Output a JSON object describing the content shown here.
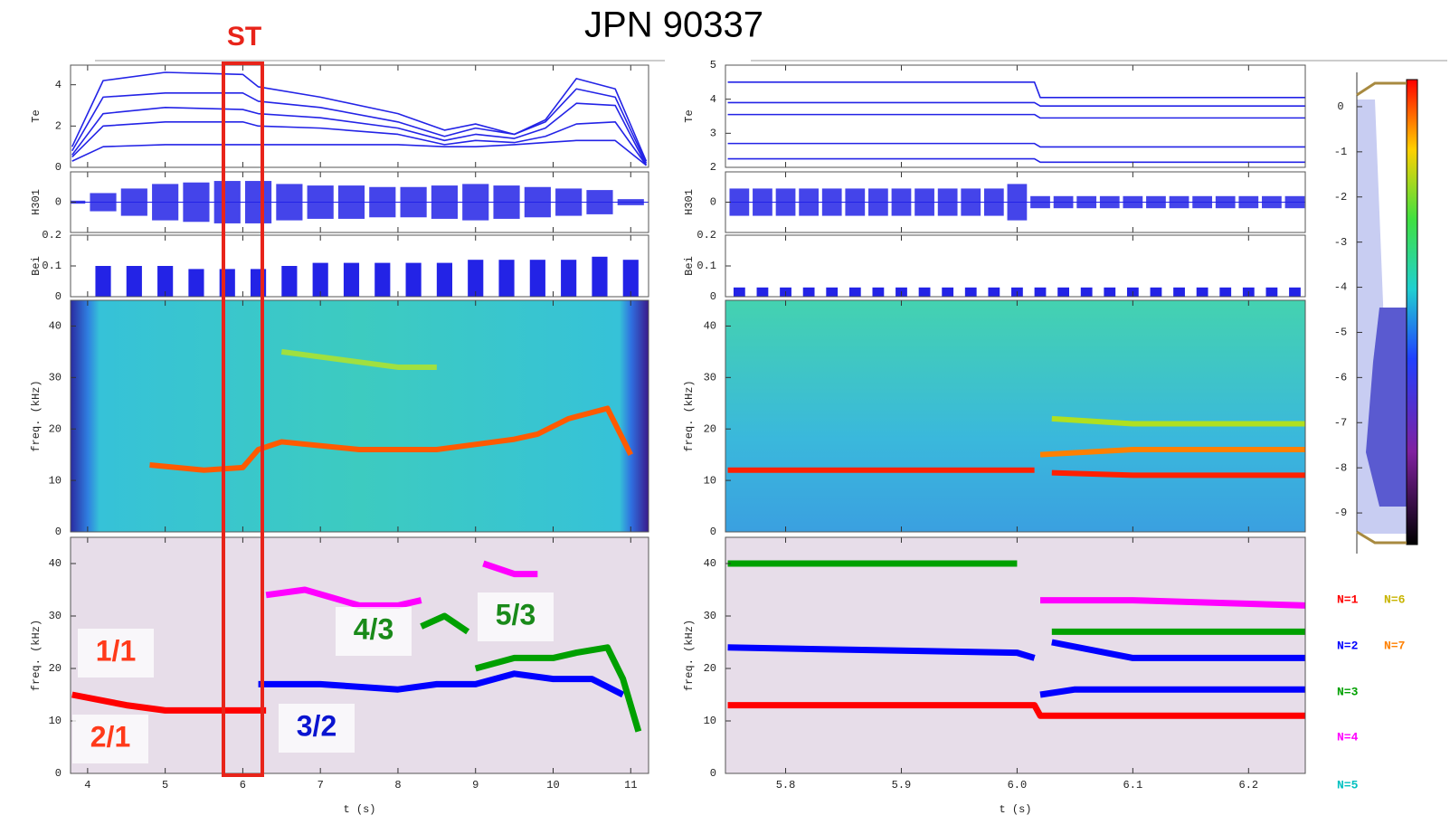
{
  "figure_title": "JPN 90337",
  "highlight_label": "ST",
  "chart_data": [
    {
      "type": "line",
      "ylabel": "Te",
      "xlim": [
        3.78,
        11.23
      ],
      "ylim": [
        0,
        4.95
      ],
      "yticks": [
        0,
        2,
        4
      ],
      "x": [
        3.8,
        4.2,
        5,
        6,
        6.2,
        7,
        8,
        8.6,
        9,
        9.5,
        9.9,
        10.3,
        10.8,
        11.2
      ],
      "series": [
        {
          "color": "#2323e6",
          "values": [
            1.0,
            4.2,
            4.6,
            4.5,
            3.9,
            3.4,
            2.6,
            1.8,
            2.1,
            1.6,
            2.3,
            4.3,
            3.8,
            0.3
          ]
        },
        {
          "color": "#2323e6",
          "values": [
            0.8,
            3.4,
            3.6,
            3.6,
            3.2,
            2.9,
            2.2,
            1.5,
            1.9,
            1.6,
            2.2,
            3.8,
            3.4,
            0.2
          ]
        },
        {
          "color": "#2323e6",
          "values": [
            0.6,
            2.6,
            2.9,
            2.8,
            2.6,
            2.4,
            1.9,
            1.3,
            1.6,
            1.4,
            1.9,
            3.1,
            3.0,
            0.1
          ]
        },
        {
          "color": "#2323e6",
          "values": [
            0.5,
            2.0,
            2.2,
            2.2,
            2.0,
            1.9,
            1.6,
            1.1,
            1.3,
            1.2,
            1.5,
            2.1,
            2.2,
            0.1
          ]
        },
        {
          "color": "#2323e6",
          "values": [
            0.3,
            1.0,
            1.1,
            1.1,
            1.1,
            1.1,
            1.1,
            1.0,
            1.0,
            1.1,
            1.2,
            1.3,
            1.3,
            0.1
          ]
        }
      ]
    },
    {
      "type": "envelope",
      "ylabel": "H301",
      "xlim": [
        3.78,
        11.23
      ],
      "ylim": [
        -1,
        1
      ],
      "yticks": [
        0
      ],
      "color": "#2323e6",
      "x": [
        3.8,
        4.2,
        4.6,
        5.0,
        5.4,
        5.8,
        6.2,
        6.6,
        7.0,
        7.4,
        7.8,
        8.2,
        8.6,
        9.0,
        9.4,
        9.8,
        10.2,
        10.6,
        11.0
      ],
      "values": [
        0.05,
        0.3,
        0.45,
        0.6,
        0.65,
        0.7,
        0.7,
        0.6,
        0.55,
        0.55,
        0.5,
        0.5,
        0.55,
        0.6,
        0.55,
        0.5,
        0.45,
        0.4,
        0.1
      ]
    },
    {
      "type": "stem",
      "ylabel": "Bei",
      "xlim": [
        3.78,
        11.23
      ],
      "ylim": [
        0,
        0.2
      ],
      "yticks": [
        0,
        0.1,
        0.2
      ],
      "color": "#2323e6",
      "x": [
        4.2,
        4.6,
        5.0,
        5.4,
        5.8,
        6.2,
        6.6,
        7.0,
        7.4,
        7.8,
        8.2,
        8.6,
        9.0,
        9.4,
        9.8,
        10.2,
        10.6,
        11.0
      ],
      "values": [
        0.1,
        0.1,
        0.1,
        0.09,
        0.09,
        0.09,
        0.1,
        0.11,
        0.11,
        0.11,
        0.11,
        0.11,
        0.12,
        0.12,
        0.12,
        0.12,
        0.13,
        0.12
      ]
    },
    {
      "type": "spectrogram",
      "ylabel": "freq. (kHz)",
      "xlim": [
        3.78,
        11.23
      ],
      "ylim": [
        0,
        45
      ],
      "yticks": [
        0,
        10,
        20,
        30,
        40
      ],
      "series": [
        {
          "color": "#ff5a00",
          "x": [
            4.8,
            5.5,
            6.0,
            6.2,
            6.5,
            7.5,
            8.5,
            9.5,
            9.8,
            10.2,
            10.7,
            11.0
          ],
          "values": [
            13,
            12,
            12.5,
            16,
            17.5,
            16,
            16,
            18,
            19,
            22,
            24,
            15
          ]
        },
        {
          "color": "#a0e040",
          "x": [
            6.5,
            7,
            8,
            8.5
          ],
          "values": [
            35,
            34,
            32,
            32
          ]
        }
      ]
    },
    {
      "type": "modes",
      "ylabel": "freq. (kHz)",
      "xlim": [
        3.78,
        11.23
      ],
      "ylim": [
        0,
        45
      ],
      "yticks": [
        0,
        10,
        20,
        30,
        40
      ],
      "xticks": [
        4,
        5,
        6,
        7,
        8,
        9,
        10,
        11
      ],
      "xlabel": "t (s)",
      "series": [
        {
          "color": "#ff0000",
          "x": [
            3.8,
            4.5,
            5,
            6,
            6.3
          ],
          "values": [
            15,
            13,
            12,
            12,
            12
          ]
        },
        {
          "color": "#0000ff",
          "x": [
            6.2,
            7,
            8,
            8.5,
            9,
            9.5,
            10,
            10.5,
            10.9
          ],
          "values": [
            17,
            17,
            16,
            17,
            17,
            19,
            18,
            18,
            15
          ]
        },
        {
          "color": "#00a000",
          "x": [
            9,
            9.5,
            10,
            10.3,
            10.7,
            10.9,
            11.1
          ],
          "values": [
            20,
            22,
            22,
            23,
            24,
            18,
            8
          ]
        },
        {
          "color": "#00a000",
          "x": [
            8.3,
            8.6,
            8.9
          ],
          "values": [
            28,
            30,
            27
          ]
        },
        {
          "color": "#ff00ff",
          "x": [
            6.3,
            6.8,
            7.5,
            8,
            8.3
          ],
          "values": [
            34,
            35,
            32,
            32,
            33
          ]
        },
        {
          "color": "#ff00ff",
          "x": [
            9.1,
            9.5,
            9.8
          ],
          "values": [
            40,
            38,
            38
          ]
        }
      ]
    },
    {
      "type": "line",
      "ylabel": "Te",
      "xlim": [
        5.748,
        6.249
      ],
      "ylim": [
        2,
        5
      ],
      "yticks": [
        2,
        3,
        4,
        5
      ],
      "x": [
        5.75,
        6.015,
        6.02,
        6.25
      ],
      "series": [
        {
          "color": "#2323e6",
          "values": [
            4.5,
            4.5,
            4.05,
            4.05
          ]
        },
        {
          "color": "#2323e6",
          "values": [
            3.9,
            3.9,
            3.8,
            3.8
          ]
        },
        {
          "color": "#2323e6",
          "values": [
            3.55,
            3.55,
            3.45,
            3.45
          ]
        },
        {
          "color": "#2323e6",
          "values": [
            2.7,
            2.7,
            2.6,
            2.6
          ]
        },
        {
          "color": "#2323e6",
          "values": [
            2.25,
            2.25,
            2.15,
            2.15
          ]
        }
      ]
    },
    {
      "type": "envelope",
      "ylabel": "H301",
      "xlim": [
        5.748,
        6.249
      ],
      "ylim": [
        -1,
        1
      ],
      "yticks": [
        0
      ],
      "color": "#2323e6",
      "x": [
        5.76,
        5.78,
        5.8,
        5.82,
        5.84,
        5.86,
        5.88,
        5.9,
        5.92,
        5.94,
        5.96,
        5.98,
        6.0,
        6.02,
        6.04,
        6.06,
        6.08,
        6.1,
        6.12,
        6.14,
        6.16,
        6.18,
        6.2,
        6.22,
        6.24
      ],
      "values": [
        0.45,
        0.45,
        0.45,
        0.45,
        0.45,
        0.45,
        0.45,
        0.45,
        0.45,
        0.45,
        0.45,
        0.45,
        0.6,
        0.2,
        0.2,
        0.2,
        0.2,
        0.2,
        0.2,
        0.2,
        0.2,
        0.2,
        0.2,
        0.2,
        0.2
      ]
    },
    {
      "type": "stem",
      "ylabel": "Bei",
      "xlim": [
        5.748,
        6.249
      ],
      "ylim": [
        0,
        0.2
      ],
      "yticks": [
        0,
        0.1,
        0.2
      ],
      "color": "#2323e6",
      "x": [
        5.76,
        5.78,
        5.8,
        5.82,
        5.84,
        5.86,
        5.88,
        5.9,
        5.92,
        5.94,
        5.96,
        5.98,
        6.0,
        6.02,
        6.04,
        6.06,
        6.08,
        6.1,
        6.12,
        6.14,
        6.16,
        6.18,
        6.2,
        6.22,
        6.24
      ],
      "values": [
        0.03,
        0.03,
        0.03,
        0.03,
        0.03,
        0.03,
        0.03,
        0.03,
        0.03,
        0.03,
        0.03,
        0.03,
        0.03,
        0.03,
        0.03,
        0.03,
        0.03,
        0.03,
        0.03,
        0.03,
        0.03,
        0.03,
        0.03,
        0.03,
        0.03
      ]
    },
    {
      "type": "spectrogram",
      "ylabel": "freq. (kHz)",
      "xlim": [
        5.748,
        6.249
      ],
      "ylim": [
        0,
        45
      ],
      "yticks": [
        0,
        10,
        20,
        30,
        40
      ],
      "series": [
        {
          "color": "#ff2000",
          "x": [
            5.75,
            6.0,
            6.015
          ],
          "values": [
            12,
            12,
            12
          ]
        },
        {
          "color": "#ff8000",
          "x": [
            6.02,
            6.1,
            6.25
          ],
          "values": [
            15,
            16,
            16
          ]
        },
        {
          "color": "#ff2000",
          "x": [
            6.03,
            6.1,
            6.25
          ],
          "values": [
            11.5,
            11,
            11
          ]
        },
        {
          "color": "#b0e020",
          "x": [
            6.03,
            6.1,
            6.25
          ],
          "values": [
            22,
            21,
            21
          ]
        }
      ]
    },
    {
      "type": "modes",
      "ylabel": "freq. (kHz)",
      "xlim": [
        5.748,
        6.249
      ],
      "ylim": [
        0,
        45
      ],
      "yticks": [
        0,
        10,
        20,
        30,
        40
      ],
      "xticks": [
        5.8,
        5.9,
        {
          "value": 6,
          "label": "6.0"
        },
        6.1,
        6.2
      ],
      "xlabel": "t (s)",
      "series": [
        {
          "color": "#ff0000",
          "x": [
            5.75,
            6.015,
            6.02,
            6.25
          ],
          "values": [
            13,
            13,
            11,
            11
          ]
        },
        {
          "color": "#0000ff",
          "x": [
            5.75,
            6.0,
            6.015
          ],
          "values": [
            24,
            23,
            22
          ]
        },
        {
          "color": "#0000ff",
          "x": [
            6.02,
            6.05,
            6.25
          ],
          "values": [
            15,
            16,
            16
          ]
        },
        {
          "color": "#0000ff",
          "x": [
            6.03,
            6.1,
            6.25
          ],
          "values": [
            25,
            22,
            22
          ]
        },
        {
          "color": "#00a000",
          "x": [
            5.75,
            6.0
          ],
          "values": [
            40,
            40
          ]
        },
        {
          "color": "#00a000",
          "x": [
            6.03,
            6.25
          ],
          "values": [
            27,
            27
          ]
        },
        {
          "color": "#ff00ff",
          "x": [
            6.02,
            6.1,
            6.25
          ],
          "values": [
            33,
            33,
            32
          ]
        }
      ]
    }
  ],
  "colorbar": {
    "ylim": [
      0.6,
      -9.7
    ],
    "yticks": [
      0,
      -1,
      -2,
      -3,
      -4,
      -5,
      -6,
      -7,
      -8,
      -9
    ]
  },
  "legend": [
    {
      "name": "N=1",
      "color": "#ff0000"
    },
    {
      "name": "N=6",
      "color": "#c8b400"
    },
    {
      "name": "N=2",
      "color": "#0000ff"
    },
    {
      "name": "N=7",
      "color": "#ff8000"
    },
    {
      "name": "N=3",
      "color": "#00a000"
    },
    {
      "name": "N=4",
      "color": "#ff00ff"
    },
    {
      "name": "N=5",
      "color": "#00c0c0"
    }
  ],
  "annotations": [
    {
      "text": "1/1",
      "color": "#ff3a1a"
    },
    {
      "text": "2/1",
      "color": "#ff3a1a"
    },
    {
      "text": "3/2",
      "color": "#0a14d0"
    },
    {
      "text": "4/3",
      "color": "#1a8a1a"
    },
    {
      "text": "5/3",
      "color": "#1a8a1a"
    }
  ]
}
